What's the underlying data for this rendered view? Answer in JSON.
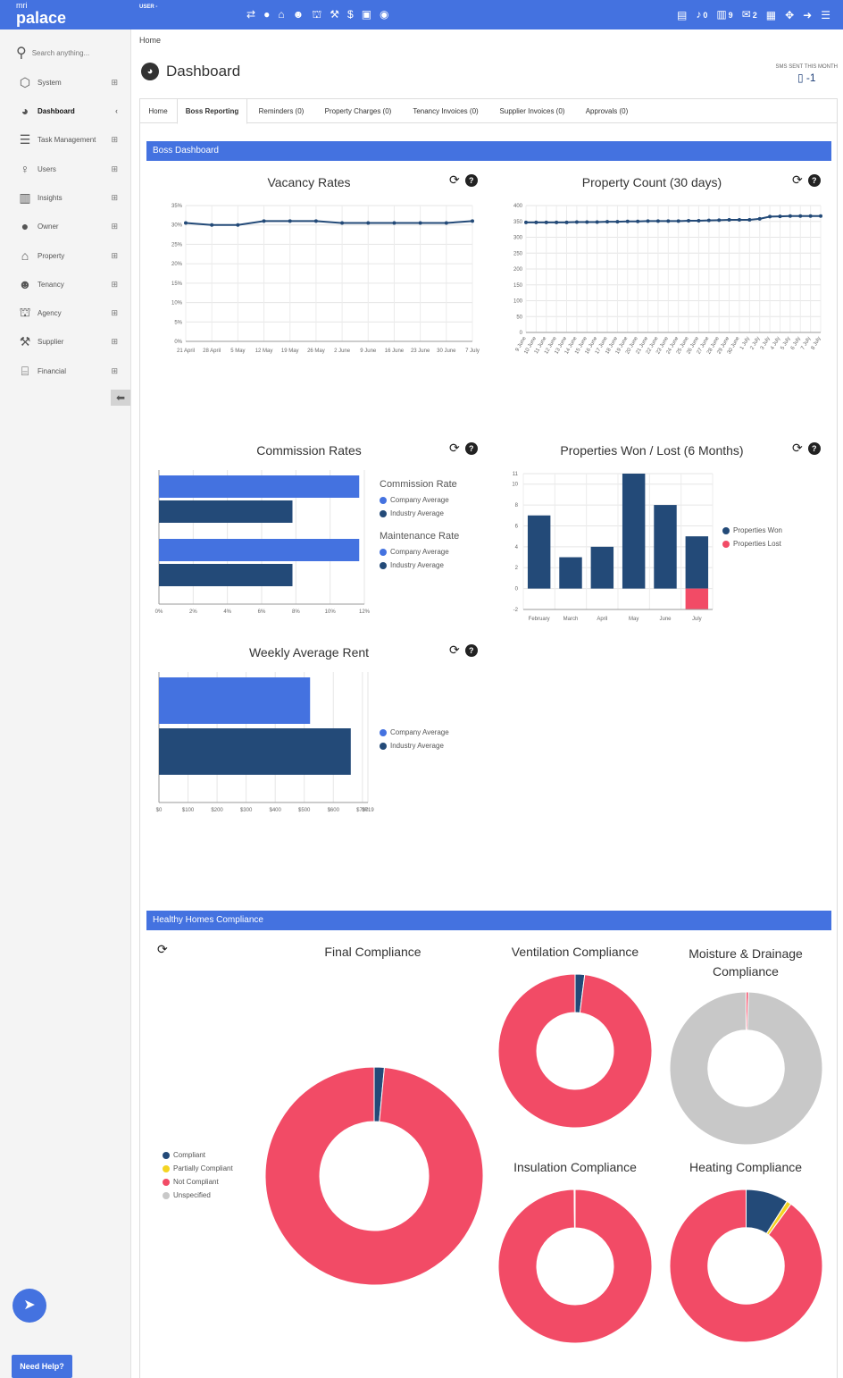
{
  "topbar": {
    "logo_top": "mri",
    "logo_main": "palace",
    "user": "USER -",
    "counts": {
      "alerts": "0",
      "documents": "9",
      "messages": "2"
    }
  },
  "sidebar": {
    "search_placeholder": "Search anything...",
    "items": [
      {
        "label": "System",
        "icon": "cube-icon"
      },
      {
        "label": "Dashboard",
        "icon": "dashboard-icon"
      },
      {
        "label": "Task Management",
        "icon": "tasks-icon"
      },
      {
        "label": "Users",
        "icon": "user-icon"
      },
      {
        "label": "Insights",
        "icon": "chart-icon"
      },
      {
        "label": "Owner",
        "icon": "owner-icon"
      },
      {
        "label": "Property",
        "icon": "home-icon"
      },
      {
        "label": "Tenancy",
        "icon": "people-icon"
      },
      {
        "label": "Agency",
        "icon": "agency-icon"
      },
      {
        "label": "Supplier",
        "icon": "wrench-icon"
      },
      {
        "label": "Financial",
        "icon": "bank-icon"
      }
    ],
    "help_label": "Need Help?"
  },
  "breadcrumb": "Home",
  "page_title": "Dashboard",
  "sms": {
    "label": "SMS SENT THIS MONTH",
    "value": "-1"
  },
  "tabs": [
    {
      "label": "Home"
    },
    {
      "label": "Boss Reporting"
    },
    {
      "label": "Reminders (0)"
    },
    {
      "label": "Property Charges (0)"
    },
    {
      "label": "Tenancy Invoices (0)"
    },
    {
      "label": "Supplier Invoices (0)"
    },
    {
      "label": "Approvals (0)"
    }
  ],
  "sections": {
    "boss": "Boss Dashboard",
    "healthy": "Healthy Homes Compliance"
  },
  "colors": {
    "primary": "#4472e0",
    "dark": "#234a78",
    "red": "#f24b66",
    "yellow": "#f4d422",
    "grey": "#c8c8c8"
  },
  "chart_data": [
    {
      "type": "line",
      "title": "Vacancy Rates",
      "x": [
        "21 April",
        "28 April",
        "5 May",
        "12 May",
        "19 May",
        "26 May",
        "2 June",
        "9 June",
        "16 June",
        "23 June",
        "30 June",
        "7 July"
      ],
      "values": [
        30.5,
        30,
        30,
        31,
        31,
        31,
        30.5,
        30.5,
        30.5,
        30.5,
        30.5,
        31
      ],
      "yticks": [
        "0%",
        "5%",
        "10%",
        "15%",
        "20%",
        "25%",
        "30%",
        "35%"
      ],
      "ylim": [
        0,
        35
      ]
    },
    {
      "type": "line",
      "title": "Property Count (30 days)",
      "x": [
        "9 June",
        "10 June",
        "11 June",
        "12 June",
        "13 June",
        "14 June",
        "15 June",
        "16 June",
        "17 June",
        "18 June",
        "19 June",
        "20 June",
        "21 June",
        "22 June",
        "23 June",
        "24 June",
        "25 June",
        "26 June",
        "27 June",
        "28 June",
        "29 June",
        "30 June",
        "1 July",
        "2 July",
        "3 July",
        "4 July",
        "5 July",
        "6 July",
        "7 July",
        "8 July"
      ],
      "values": [
        347,
        347,
        347,
        347,
        347,
        348,
        348,
        348,
        349,
        349,
        350,
        350,
        351,
        351,
        351,
        351,
        352,
        352,
        353,
        354,
        355,
        355,
        355,
        358,
        365,
        366,
        367,
        367,
        367,
        367
      ],
      "yticks": [
        "0",
        "50",
        "100",
        "150",
        "200",
        "250",
        "300",
        "350",
        "400"
      ],
      "ylim": [
        0,
        400
      ]
    },
    {
      "type": "bar",
      "title": "Commission Rates",
      "categories": [
        "Commission Rate",
        "Maintenance Rate"
      ],
      "series": [
        {
          "name": "Company Average",
          "values": [
            11.7,
            11.7
          ]
        },
        {
          "name": "Industry Average",
          "values": [
            7.8,
            7.8
          ]
        }
      ],
      "xticks": [
        "0%",
        "2%",
        "4%",
        "6%",
        "8%",
        "10%",
        "12%"
      ],
      "xlim": [
        0,
        12
      ]
    },
    {
      "type": "bar",
      "title": "Properties Won / Lost (6 Months)",
      "categories": [
        "February",
        "March",
        "April",
        "May",
        "June",
        "July"
      ],
      "series": [
        {
          "name": "Properties Won",
          "values": [
            7,
            3,
            4,
            11,
            8,
            5
          ]
        },
        {
          "name": "Properties Lost",
          "values": [
            0,
            0,
            0,
            0,
            0,
            -2
          ]
        }
      ],
      "yticks": [
        "-2",
        "0",
        "2",
        "4",
        "6",
        "8",
        "10",
        "11"
      ],
      "ylim": [
        -2,
        11
      ]
    },
    {
      "type": "bar",
      "title": "Weekly Average Rent",
      "series": [
        {
          "name": "Company Average",
          "values": [
            520
          ]
        },
        {
          "name": "Industry Average",
          "values": [
            660
          ]
        }
      ],
      "xticks": [
        "$0",
        "$100",
        "$200",
        "$300",
        "$400",
        "$500",
        "$600",
        "$700",
        "$719"
      ],
      "xlim": [
        0,
        719
      ]
    },
    {
      "type": "pie",
      "title": "Final Compliance",
      "labels": [
        "Compliant",
        "Partially Compliant",
        "Not Compliant",
        "Unspecified"
      ],
      "values": [
        1.5,
        0,
        98.5,
        0
      ]
    },
    {
      "type": "pie",
      "title": "Ventilation Compliance",
      "labels": [
        "Compliant",
        "Partially Compliant",
        "Not Compliant",
        "Unspecified"
      ],
      "values": [
        2,
        0,
        98,
        0
      ]
    },
    {
      "type": "pie",
      "title": "Moisture & Drainage Compliance",
      "labels": [
        "Compliant",
        "Partially Compliant",
        "Not Compliant",
        "Unspecified"
      ],
      "values": [
        0,
        0,
        0.5,
        99.5
      ]
    },
    {
      "type": "pie",
      "title": "Insulation Compliance",
      "labels": [
        "Compliant",
        "Partially Compliant",
        "Not Compliant",
        "Unspecified"
      ],
      "values": [
        0,
        0,
        99.8,
        0.2
      ]
    },
    {
      "type": "pie",
      "title": "Heating Compliance",
      "labels": [
        "Compliant",
        "Partially Compliant",
        "Not Compliant",
        "Unspecified"
      ],
      "values": [
        9,
        1,
        90,
        0
      ]
    }
  ]
}
